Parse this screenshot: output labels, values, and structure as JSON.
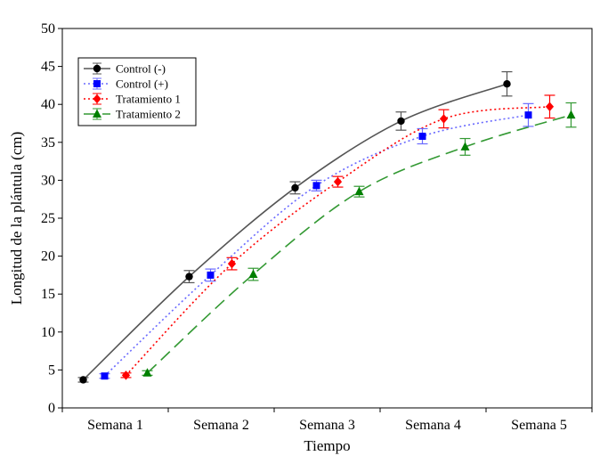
{
  "chart_data": {
    "type": "line",
    "title": "",
    "xlabel": "Tiempo",
    "ylabel": "Longitud de la plántula (cm)",
    "categories": [
      "Semana 1",
      "Semana 2",
      "Semana 3",
      "Semana 4",
      "Semana 5"
    ],
    "ylim": [
      0,
      50
    ],
    "yticks": [
      0,
      5,
      10,
      15,
      20,
      25,
      30,
      35,
      40,
      45,
      50
    ],
    "grid": false,
    "legend_position": "top-left",
    "series": [
      {
        "name": "Control (-)",
        "color": "#000000",
        "line_color": "#555555",
        "line_style": "solid",
        "marker": "circle",
        "values": [
          3.7,
          17.3,
          29.0,
          37.8,
          42.7
        ],
        "error": [
          0.3,
          0.8,
          0.8,
          1.2,
          1.6
        ]
      },
      {
        "name": "Control (+)",
        "color": "#0000ff",
        "line_color": "#6a6aff",
        "line_style": "dotted",
        "marker": "square",
        "values": [
          4.2,
          17.5,
          29.3,
          35.8,
          38.6
        ],
        "error": [
          0.3,
          0.8,
          0.7,
          1.0,
          1.5
        ]
      },
      {
        "name": "Tratamiento 1",
        "color": "#ff0000",
        "line_color": "#ff0000",
        "line_style": "dotted",
        "marker": "diamond",
        "values": [
          4.3,
          19.0,
          29.8,
          38.1,
          39.7
        ],
        "error": [
          0.3,
          0.8,
          0.7,
          1.2,
          1.5
        ]
      },
      {
        "name": "Tratamiento 2",
        "color": "#008000",
        "line_color": "#339933",
        "line_style": "dashed",
        "marker": "triangle",
        "values": [
          4.6,
          17.6,
          28.5,
          34.4,
          38.6
        ],
        "error": [
          0.3,
          0.8,
          0.7,
          1.1,
          1.6
        ]
      }
    ]
  }
}
